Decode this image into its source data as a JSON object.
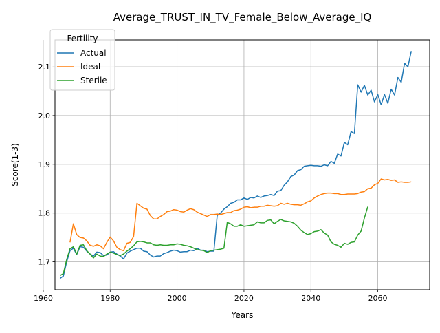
{
  "chart_data": {
    "type": "line",
    "title": "Average_TRUST_IN_TV_Female_Below_Average_IQ",
    "xlabel": "Years",
    "ylabel": "Score(1-3)",
    "xlim": [
      1963.5,
      2075.5
    ],
    "ylim": [
      1.643,
      2.155
    ],
    "xticks": [
      1960,
      1980,
      2000,
      2020,
      2040,
      2060
    ],
    "yticks": [
      1.7,
      1.8,
      1.9,
      2.0,
      2.1
    ],
    "ytick_labels": [
      "1.7",
      "1.8",
      "1.9",
      "2.0",
      "2.1"
    ],
    "grid": true,
    "legend": {
      "title": "Fertility",
      "position": "top-left"
    },
    "series": [
      {
        "name": "Actual",
        "color": "#1f77b4",
        "points": [
          [
            1965,
            1.666
          ],
          [
            1966,
            1.671
          ],
          [
            1967,
            1.7
          ],
          [
            1968,
            1.723
          ],
          [
            1969,
            1.728
          ],
          [
            1970,
            1.715
          ],
          [
            1971,
            1.731
          ],
          [
            1972,
            1.73
          ],
          [
            1973,
            1.722
          ],
          [
            1974,
            1.716
          ],
          [
            1975,
            1.712
          ],
          [
            1976,
            1.72
          ],
          [
            1977,
            1.719
          ],
          [
            1978,
            1.713
          ],
          [
            1979,
            1.714
          ],
          [
            1980,
            1.72
          ],
          [
            1981,
            1.721
          ],
          [
            1982,
            1.716
          ],
          [
            1983,
            1.712
          ],
          [
            1984,
            1.706
          ],
          [
            1985,
            1.718
          ],
          [
            1986,
            1.722
          ],
          [
            1987,
            1.725
          ],
          [
            1988,
            1.728
          ],
          [
            1989,
            1.728
          ],
          [
            1990,
            1.722
          ],
          [
            1991,
            1.721
          ],
          [
            1992,
            1.714
          ],
          [
            1993,
            1.71
          ],
          [
            1994,
            1.712
          ],
          [
            1995,
            1.712
          ],
          [
            1996,
            1.717
          ],
          [
            1997,
            1.719
          ],
          [
            1998,
            1.722
          ],
          [
            1999,
            1.724
          ],
          [
            2000,
            1.723
          ],
          [
            2001,
            1.72
          ],
          [
            2002,
            1.721
          ],
          [
            2003,
            1.721
          ],
          [
            2004,
            1.724
          ],
          [
            2005,
            1.723
          ],
          [
            2006,
            1.728
          ],
          [
            2007,
            1.724
          ],
          [
            2008,
            1.724
          ],
          [
            2009,
            1.721
          ],
          [
            2010,
            1.722
          ],
          [
            2011,
            1.722
          ],
          [
            2012,
            1.795
          ],
          [
            2013,
            1.8
          ],
          [
            2014,
            1.808
          ],
          [
            2015,
            1.813
          ],
          [
            2016,
            1.82
          ],
          [
            2017,
            1.822
          ],
          [
            2018,
            1.827
          ],
          [
            2019,
            1.827
          ],
          [
            2020,
            1.831
          ],
          [
            2021,
            1.828
          ],
          [
            2022,
            1.832
          ],
          [
            2023,
            1.831
          ],
          [
            2024,
            1.835
          ],
          [
            2025,
            1.832
          ],
          [
            2026,
            1.835
          ],
          [
            2027,
            1.836
          ],
          [
            2028,
            1.838
          ],
          [
            2029,
            1.836
          ],
          [
            2030,
            1.845
          ],
          [
            2031,
            1.846
          ],
          [
            2032,
            1.857
          ],
          [
            2033,
            1.864
          ],
          [
            2034,
            1.875
          ],
          [
            2035,
            1.878
          ],
          [
            2036,
            1.887
          ],
          [
            2037,
            1.889
          ],
          [
            2038,
            1.896
          ],
          [
            2039,
            1.897
          ],
          [
            2040,
            1.898
          ],
          [
            2041,
            1.897
          ],
          [
            2042,
            1.897
          ],
          [
            2043,
            1.896
          ],
          [
            2044,
            1.899
          ],
          [
            2045,
            1.897
          ],
          [
            2046,
            1.906
          ],
          [
            2047,
            1.902
          ],
          [
            2048,
            1.921
          ],
          [
            2049,
            1.917
          ],
          [
            2050,
            1.945
          ],
          [
            2051,
            1.94
          ],
          [
            2052,
            1.967
          ],
          [
            2053,
            1.963
          ],
          [
            2054,
            2.063
          ],
          [
            2055,
            2.048
          ],
          [
            2056,
            2.062
          ],
          [
            2057,
            2.042
          ],
          [
            2058,
            2.052
          ],
          [
            2059,
            2.028
          ],
          [
            2060,
            2.043
          ],
          [
            2061,
            2.022
          ],
          [
            2062,
            2.043
          ],
          [
            2063,
            2.025
          ],
          [
            2064,
            2.054
          ],
          [
            2065,
            2.042
          ],
          [
            2066,
            2.078
          ],
          [
            2067,
            2.068
          ],
          [
            2068,
            2.107
          ],
          [
            2069,
            2.1
          ],
          [
            2070,
            2.132
          ]
        ]
      },
      {
        "name": "Ideal",
        "color": "#ff7f0e",
        "points": [
          [
            1968,
            1.74
          ],
          [
            1969,
            1.778
          ],
          [
            1970,
            1.756
          ],
          [
            1971,
            1.75
          ],
          [
            1972,
            1.749
          ],
          [
            1973,
            1.743
          ],
          [
            1974,
            1.734
          ],
          [
            1975,
            1.732
          ],
          [
            1976,
            1.735
          ],
          [
            1977,
            1.733
          ],
          [
            1978,
            1.727
          ],
          [
            1979,
            1.74
          ],
          [
            1980,
            1.751
          ],
          [
            1981,
            1.743
          ],
          [
            1982,
            1.73
          ],
          [
            1983,
            1.725
          ],
          [
            1984,
            1.723
          ],
          [
            1985,
            1.738
          ],
          [
            1986,
            1.74
          ],
          [
            1987,
            1.752
          ],
          [
            1988,
            1.82
          ],
          [
            1989,
            1.815
          ],
          [
            1990,
            1.81
          ],
          [
            1991,
            1.808
          ],
          [
            1992,
            1.795
          ],
          [
            1993,
            1.788
          ],
          [
            1994,
            1.788
          ],
          [
            1995,
            1.793
          ],
          [
            1996,
            1.797
          ],
          [
            1997,
            1.803
          ],
          [
            1998,
            1.804
          ],
          [
            1999,
            1.807
          ],
          [
            2000,
            1.806
          ],
          [
            2001,
            1.803
          ],
          [
            2002,
            1.802
          ],
          [
            2003,
            1.806
          ],
          [
            2004,
            1.809
          ],
          [
            2005,
            1.807
          ],
          [
            2006,
            1.802
          ],
          [
            2007,
            1.799
          ],
          [
            2008,
            1.796
          ],
          [
            2009,
            1.793
          ],
          [
            2010,
            1.797
          ],
          [
            2011,
            1.797
          ],
          [
            2012,
            1.798
          ],
          [
            2013,
            1.797
          ],
          [
            2014,
            1.799
          ],
          [
            2015,
            1.801
          ],
          [
            2016,
            1.801
          ],
          [
            2017,
            1.805
          ],
          [
            2018,
            1.806
          ],
          [
            2019,
            1.808
          ],
          [
            2020,
            1.812
          ],
          [
            2021,
            1.813
          ],
          [
            2022,
            1.811
          ],
          [
            2023,
            1.812
          ],
          [
            2024,
            1.812
          ],
          [
            2025,
            1.814
          ],
          [
            2026,
            1.814
          ],
          [
            2027,
            1.816
          ],
          [
            2028,
            1.815
          ],
          [
            2029,
            1.814
          ],
          [
            2030,
            1.815
          ],
          [
            2031,
            1.82
          ],
          [
            2032,
            1.818
          ],
          [
            2033,
            1.82
          ],
          [
            2034,
            1.818
          ],
          [
            2035,
            1.817
          ],
          [
            2036,
            1.817
          ],
          [
            2037,
            1.816
          ],
          [
            2038,
            1.819
          ],
          [
            2039,
            1.823
          ],
          [
            2040,
            1.825
          ],
          [
            2041,
            1.831
          ],
          [
            2042,
            1.835
          ],
          [
            2043,
            1.838
          ],
          [
            2044,
            1.84
          ],
          [
            2045,
            1.841
          ],
          [
            2046,
            1.841
          ],
          [
            2047,
            1.84
          ],
          [
            2048,
            1.84
          ],
          [
            2049,
            1.838
          ],
          [
            2050,
            1.838
          ],
          [
            2051,
            1.839
          ],
          [
            2052,
            1.839
          ],
          [
            2053,
            1.839
          ],
          [
            2054,
            1.84
          ],
          [
            2055,
            1.843
          ],
          [
            2056,
            1.844
          ],
          [
            2057,
            1.85
          ],
          [
            2058,
            1.851
          ],
          [
            2059,
            1.858
          ],
          [
            2060,
            1.861
          ],
          [
            2061,
            1.87
          ],
          [
            2062,
            1.868
          ],
          [
            2063,
            1.869
          ],
          [
            2064,
            1.867
          ],
          [
            2065,
            1.868
          ],
          [
            2066,
            1.863
          ],
          [
            2067,
            1.864
          ],
          [
            2068,
            1.863
          ],
          [
            2069,
            1.863
          ],
          [
            2070,
            1.864
          ]
        ]
      },
      {
        "name": "Sterile",
        "color": "#2ca02c",
        "points": [
          [
            1965,
            1.672
          ],
          [
            1966,
            1.676
          ],
          [
            1967,
            1.705
          ],
          [
            1968,
            1.727
          ],
          [
            1969,
            1.731
          ],
          [
            1970,
            1.716
          ],
          [
            1971,
            1.734
          ],
          [
            1972,
            1.735
          ],
          [
            1973,
            1.723
          ],
          [
            1974,
            1.716
          ],
          [
            1975,
            1.708
          ],
          [
            1976,
            1.716
          ],
          [
            1977,
            1.712
          ],
          [
            1978,
            1.711
          ],
          [
            1979,
            1.716
          ],
          [
            1980,
            1.72
          ],
          [
            1981,
            1.718
          ],
          [
            1982,
            1.715
          ],
          [
            1983,
            1.713
          ],
          [
            1984,
            1.716
          ],
          [
            1985,
            1.722
          ],
          [
            1986,
            1.727
          ],
          [
            1987,
            1.733
          ],
          [
            1988,
            1.741
          ],
          [
            1989,
            1.742
          ],
          [
            1990,
            1.741
          ],
          [
            1991,
            1.739
          ],
          [
            1992,
            1.739
          ],
          [
            1993,
            1.735
          ],
          [
            1994,
            1.734
          ],
          [
            1995,
            1.735
          ],
          [
            1996,
            1.734
          ],
          [
            1997,
            1.734
          ],
          [
            1998,
            1.735
          ],
          [
            1999,
            1.735
          ],
          [
            2000,
            1.737
          ],
          [
            2001,
            1.736
          ],
          [
            2002,
            1.734
          ],
          [
            2003,
            1.733
          ],
          [
            2004,
            1.731
          ],
          [
            2005,
            1.728
          ],
          [
            2006,
            1.725
          ],
          [
            2007,
            1.724
          ],
          [
            2008,
            1.723
          ],
          [
            2009,
            1.719
          ],
          [
            2010,
            1.723
          ],
          [
            2011,
            1.724
          ],
          [
            2012,
            1.725
          ],
          [
            2013,
            1.726
          ],
          [
            2014,
            1.728
          ],
          [
            2015,
            1.781
          ],
          [
            2016,
            1.778
          ],
          [
            2017,
            1.773
          ],
          [
            2018,
            1.773
          ],
          [
            2019,
            1.776
          ],
          [
            2020,
            1.773
          ],
          [
            2021,
            1.774
          ],
          [
            2022,
            1.775
          ],
          [
            2023,
            1.776
          ],
          [
            2024,
            1.782
          ],
          [
            2025,
            1.78
          ],
          [
            2026,
            1.78
          ],
          [
            2027,
            1.785
          ],
          [
            2028,
            1.786
          ],
          [
            2029,
            1.778
          ],
          [
            2030,
            1.783
          ],
          [
            2031,
            1.787
          ],
          [
            2032,
            1.784
          ],
          [
            2033,
            1.783
          ],
          [
            2034,
            1.782
          ],
          [
            2035,
            1.779
          ],
          [
            2036,
            1.773
          ],
          [
            2037,
            1.765
          ],
          [
            2038,
            1.76
          ],
          [
            2039,
            1.756
          ],
          [
            2040,
            1.758
          ],
          [
            2041,
            1.762
          ],
          [
            2042,
            1.763
          ],
          [
            2043,
            1.766
          ],
          [
            2044,
            1.759
          ],
          [
            2045,
            1.755
          ],
          [
            2046,
            1.741
          ],
          [
            2047,
            1.736
          ],
          [
            2048,
            1.734
          ],
          [
            2049,
            1.73
          ],
          [
            2050,
            1.738
          ],
          [
            2051,
            1.736
          ],
          [
            2052,
            1.74
          ],
          [
            2053,
            1.741
          ],
          [
            2054,
            1.755
          ],
          [
            2055,
            1.763
          ],
          [
            2056,
            1.79
          ],
          [
            2057,
            1.813
          ]
        ]
      }
    ]
  }
}
